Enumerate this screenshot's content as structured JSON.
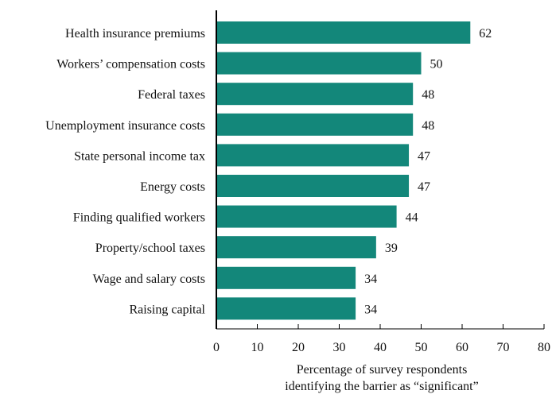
{
  "chart_data": {
    "type": "bar",
    "orientation": "horizontal",
    "categories": [
      "Health insurance premiums",
      "Workers’ compensation costs",
      "Federal taxes",
      "Unemployment insurance costs",
      "State personal income tax",
      "Energy costs",
      "Finding qualified workers",
      "Property/school taxes",
      "Wage and salary costs",
      "Raising capital"
    ],
    "values": [
      62,
      50,
      48,
      48,
      47,
      47,
      44,
      39,
      34,
      34
    ],
    "data_labels": [
      "62",
      "50",
      "48",
      "48",
      "47",
      "47",
      "44",
      "39",
      "34",
      "34"
    ],
    "xlim": [
      0,
      80
    ],
    "xticks": [
      0,
      10,
      20,
      30,
      40,
      50,
      60,
      70,
      80
    ],
    "xtick_labels": [
      "0",
      "10",
      "20",
      "30",
      "40",
      "50",
      "60",
      "70",
      "80"
    ],
    "xlabel_lines": [
      "Percentage of survey respondents",
      "identifying the barrier as “significant”"
    ],
    "bar_color": "#13877a",
    "grid": false,
    "legend": "none"
  }
}
